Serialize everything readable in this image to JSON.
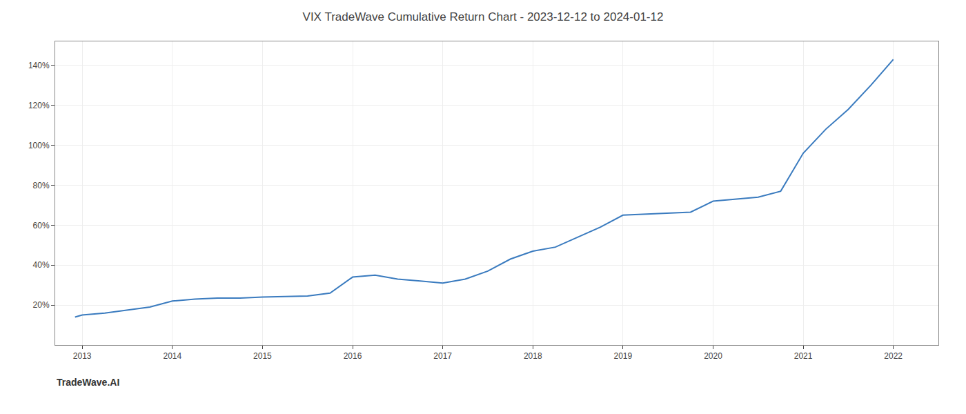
{
  "chart_data": {
    "type": "line",
    "title": "VIX TradeWave Cumulative Return Chart - 2023-12-12 to 2024-01-12",
    "annotations": [
      "TradeWave.AI"
    ],
    "x": [
      2012.92,
      2013.0,
      2013.25,
      2013.75,
      2014.0,
      2014.25,
      2014.5,
      2014.75,
      2015.0,
      2015.25,
      2015.5,
      2015.75,
      2016.0,
      2016.25,
      2016.5,
      2016.75,
      2017.0,
      2017.25,
      2017.5,
      2017.75,
      2018.0,
      2018.25,
      2018.5,
      2018.75,
      2019.0,
      2019.25,
      2019.5,
      2019.75,
      2020.0,
      2020.25,
      2020.5,
      2020.75,
      2021.0,
      2021.25,
      2021.5,
      2021.75,
      2022.0
    ],
    "values": [
      14,
      15,
      16,
      19,
      22,
      23,
      23.5,
      23.5,
      24,
      24.2,
      24.5,
      26,
      34,
      35,
      33,
      32,
      31,
      33,
      37,
      43,
      47,
      49,
      54,
      59,
      65,
      65.5,
      66,
      66.5,
      72,
      73,
      74,
      77,
      96,
      108,
      118,
      130,
      143
    ],
    "color": "#3a7bbf",
    "xlim": [
      2012.7,
      2022.5
    ],
    "ylim": [
      0,
      152
    ],
    "xticks": [
      2013,
      2014,
      2015,
      2016,
      2017,
      2018,
      2019,
      2020,
      2021,
      2022
    ],
    "yticks": [
      {
        "value": 20,
        "label": "20%"
      },
      {
        "value": 40,
        "label": "40%"
      },
      {
        "value": 60,
        "label": "60%"
      },
      {
        "value": 80,
        "label": "80%"
      },
      {
        "value": 100,
        "label": "100%"
      },
      {
        "value": 120,
        "label": "120%"
      },
      {
        "value": 140,
        "label": "140%"
      }
    ],
    "grid": true
  }
}
